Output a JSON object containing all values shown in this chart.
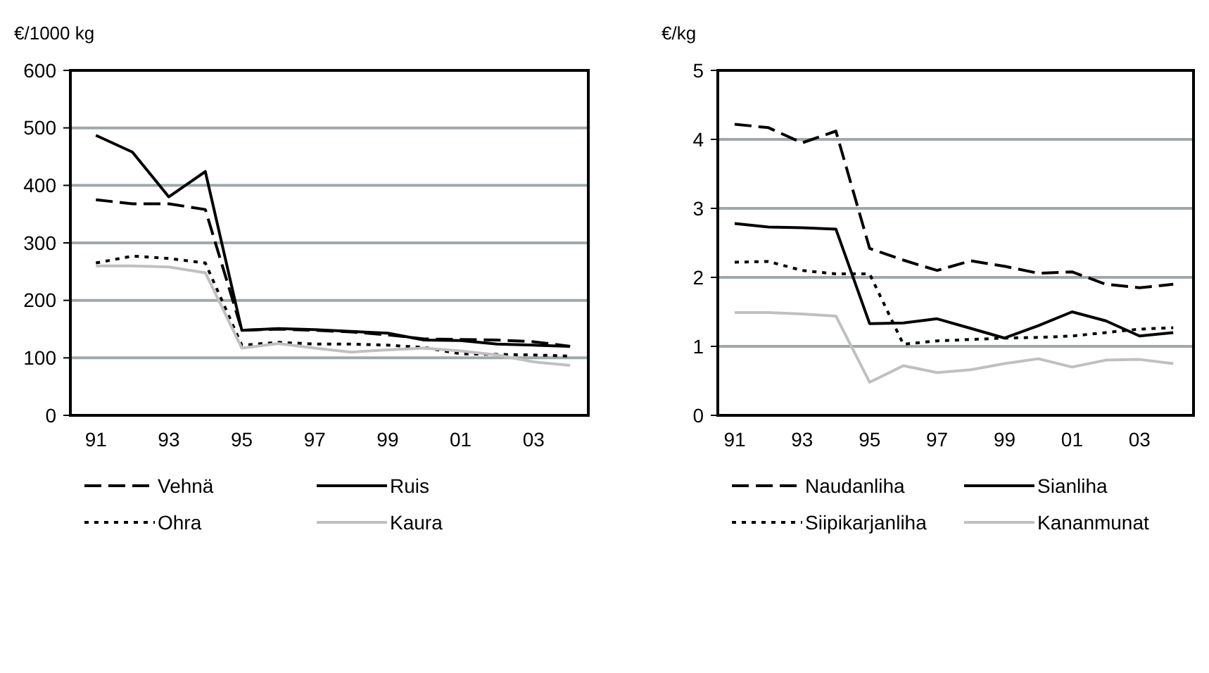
{
  "chart_data": [
    {
      "type": "line",
      "ylabel": "€/1000 kg",
      "x": [
        1991,
        1992,
        1993,
        1994,
        1995,
        1996,
        1997,
        1998,
        1999,
        2000,
        2001,
        2002,
        2003,
        2004
      ],
      "xlim": [
        1990.3,
        2004.5
      ],
      "xticks": [
        {
          "value": 1991,
          "label": "91"
        },
        {
          "value": 1993,
          "label": "93"
        },
        {
          "value": 1995,
          "label": "95"
        },
        {
          "value": 1997,
          "label": "97"
        },
        {
          "value": 1999,
          "label": "99"
        },
        {
          "value": 2001,
          "label": "01"
        },
        {
          "value": 2003,
          "label": "03"
        }
      ],
      "ylim": [
        0,
        600
      ],
      "yticks": [
        0,
        100,
        200,
        300,
        400,
        500,
        600
      ],
      "grid": "y",
      "legend": "bottom",
      "series": [
        {
          "name": "Vehnä",
          "color": "#000000",
          "line_style": "dashed",
          "values": [
            375,
            368,
            368,
            358,
            148,
            150,
            148,
            145,
            140,
            133,
            132,
            131,
            128,
            120
          ]
        },
        {
          "name": "Ruis",
          "color": "#000000",
          "line_style": "solid",
          "values": [
            487,
            458,
            380,
            424,
            148,
            151,
            149,
            146,
            143,
            131,
            130,
            124,
            122,
            120
          ]
        },
        {
          "name": "Ohra",
          "color": "#000000",
          "line_style": "dotted",
          "values": [
            265,
            277,
            273,
            265,
            122,
            127,
            124,
            124,
            122,
            118,
            107,
            106,
            105,
            103
          ]
        },
        {
          "name": "Kaura",
          "color": "#c0c0c0",
          "line_style": "solid",
          "values": [
            260,
            260,
            258,
            248,
            117,
            125,
            117,
            110,
            114,
            117,
            112,
            105,
            93,
            87
          ]
        }
      ]
    },
    {
      "type": "line",
      "ylabel": "€/kg",
      "x": [
        1991,
        1992,
        1993,
        1994,
        1995,
        1996,
        1997,
        1998,
        1999,
        2000,
        2001,
        2002,
        2003,
        2004
      ],
      "xlim": [
        1990.5,
        2004.6
      ],
      "xticks": [
        {
          "value": 1991,
          "label": "91"
        },
        {
          "value": 1993,
          "label": "93"
        },
        {
          "value": 1995,
          "label": "95"
        },
        {
          "value": 1997,
          "label": "97"
        },
        {
          "value": 1999,
          "label": "99"
        },
        {
          "value": 2001,
          "label": "01"
        },
        {
          "value": 2003,
          "label": "03"
        }
      ],
      "ylim": [
        0,
        5
      ],
      "yticks": [
        0,
        1,
        2,
        3,
        4,
        5
      ],
      "grid": "y",
      "legend": "bottom",
      "series": [
        {
          "name": "Naudanliha",
          "color": "#000000",
          "line_style": "dashed",
          "values": [
            4.22,
            4.17,
            3.95,
            4.12,
            2.42,
            2.25,
            2.1,
            2.24,
            2.16,
            2.06,
            2.08,
            1.9,
            1.85,
            1.9
          ]
        },
        {
          "name": "Sianliha",
          "color": "#000000",
          "line_style": "solid",
          "values": [
            2.78,
            2.73,
            2.72,
            2.7,
            1.33,
            1.34,
            1.4,
            1.26,
            1.12,
            1.3,
            1.5,
            1.37,
            1.15,
            1.2
          ]
        },
        {
          "name": "Siipikarjanliha",
          "color": "#000000",
          "line_style": "dotted",
          "values": [
            2.22,
            2.23,
            2.1,
            2.05,
            2.05,
            1.03,
            1.08,
            1.1,
            1.12,
            1.13,
            1.15,
            1.2,
            1.25,
            1.27
          ]
        },
        {
          "name": "Kananmunat",
          "color": "#c0c0c0",
          "line_style": "solid",
          "values": [
            1.49,
            1.49,
            1.47,
            1.44,
            0.48,
            0.72,
            0.62,
            0.66,
            0.75,
            0.82,
            0.7,
            0.8,
            0.81,
            0.75
          ]
        }
      ]
    }
  ]
}
